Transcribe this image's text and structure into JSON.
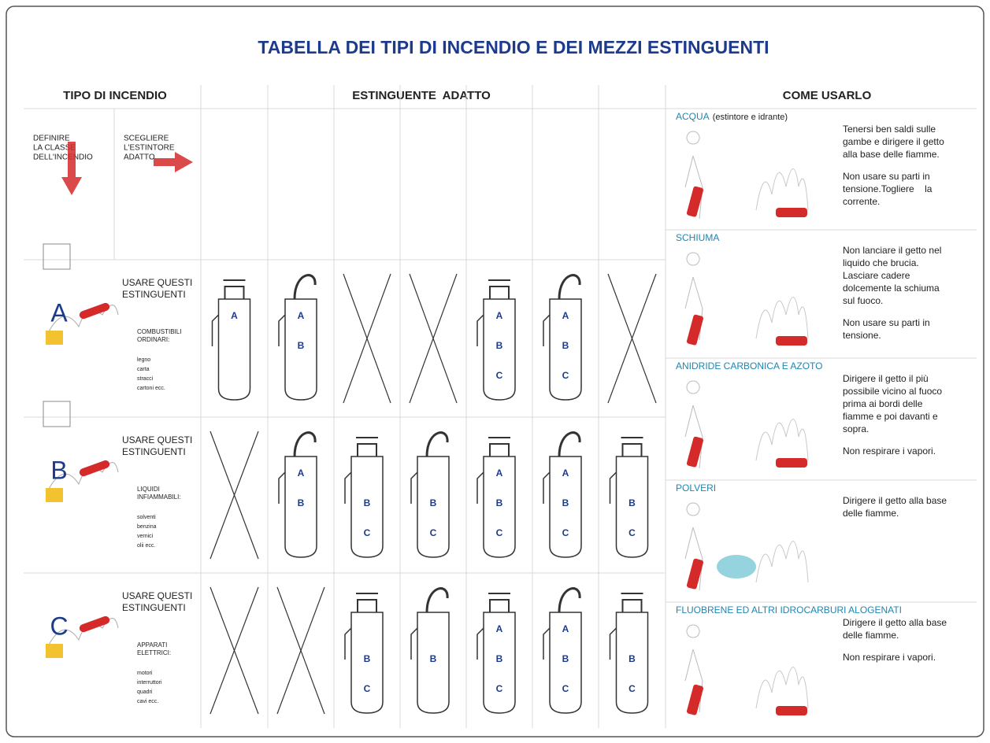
{
  "title": "TABELLA DEI TIPI DI INCENDIO E DEI MEZZI ESTINGUENTI",
  "headers": {
    "tipo": "TIPO DI INCENDIO",
    "estinguente": "ESTINGUENTE  ADATTO",
    "come": "COME USARLO"
  },
  "instructions": {
    "define": [
      "DEFINIRE",
      "LA CLASSE",
      "DELL'INCENDIO"
    ],
    "choose": [
      "SCEGLIERE",
      "L'ESTINTORE",
      "ADATTO"
    ]
  },
  "classes": [
    {
      "letter": "A",
      "use": [
        "USARE QUESTI",
        "ESTINGUENTI"
      ],
      "kind": [
        "COMBUSTIBILI",
        "ORDINARI:"
      ],
      "examples": [
        "legno",
        "carta",
        "stracci",
        "cartoni ecc."
      ],
      "cells": [
        [
          "A"
        ],
        [
          "A",
          "B"
        ],
        [],
        [],
        [
          "A",
          "B",
          "C"
        ],
        [
          "A",
          "B",
          "C"
        ],
        []
      ]
    },
    {
      "letter": "B",
      "use": [
        "USARE QUESTI",
        "ESTINGUENTI"
      ],
      "kind": [
        "LIQUIDI",
        "INFIAMMABILI:"
      ],
      "examples": [
        "solventi",
        "benzina",
        "vernici",
        "olii ecc."
      ],
      "cells": [
        [],
        [
          "A",
          "B"
        ],
        [
          "B",
          "C"
        ],
        [
          "B",
          "C"
        ],
        [
          "A",
          "B",
          "C"
        ],
        [
          "A",
          "B",
          "C"
        ],
        [
          "B",
          "C"
        ]
      ]
    },
    {
      "letter": "C",
      "use": [
        "USARE QUESTI",
        "ESTINGUENTI"
      ],
      "kind": [
        "APPARATI",
        "ELETTRICI:"
      ],
      "examples": [
        "motori",
        "interruttori",
        "quadri",
        "cavi ecc."
      ],
      "cells": [
        [],
        [],
        [
          "B",
          "C"
        ],
        [
          "B"
        ],
        [
          "A",
          "B",
          "C"
        ],
        [
          "A",
          "B",
          "C"
        ],
        [
          "B",
          "C"
        ]
      ]
    }
  ],
  "methods": [
    {
      "name": "ACQUA",
      "note": "(estintore e idrante)",
      "paragraphs": [
        [
          "Tenersi ben saldi sulle",
          "gambe e dirigere il getto",
          "alla base delle fiamme."
        ],
        [
          "Non usare su parti in",
          "tensione.Togliere    la",
          "corrente."
        ]
      ]
    },
    {
      "name": "SCHIUMA",
      "paragraphs": [
        [
          "Non lanciare il getto nel",
          "liquido che brucia.",
          "Lasciare cadere",
          "dolcemente la schiuma",
          "sul fuoco."
        ],
        [
          "Non usare su parti in",
          "tensione."
        ]
      ]
    },
    {
      "name": "ANIDRIDE CARBONICA E AZOTO",
      "paragraphs": [
        [
          "Dirigere il getto il più",
          "possibile vicino al fuoco",
          "prima ai bordi delle",
          "fiamme e poi davanti e",
          "sopra."
        ],
        [
          "Non respirare i vapori."
        ]
      ]
    },
    {
      "name": "POLVERI",
      "paragraphs": [
        [
          "Dirigere il getto alla base",
          "delle fiamme."
        ]
      ]
    },
    {
      "name": "FLUOBRENE ED ALTRI IDROCARBURI ALOGENATI",
      "paragraphs": [
        [
          "Dirigere il getto alla base",
          "delle fiamme."
        ],
        [
          "Non respirare i vapori."
        ]
      ]
    }
  ]
}
